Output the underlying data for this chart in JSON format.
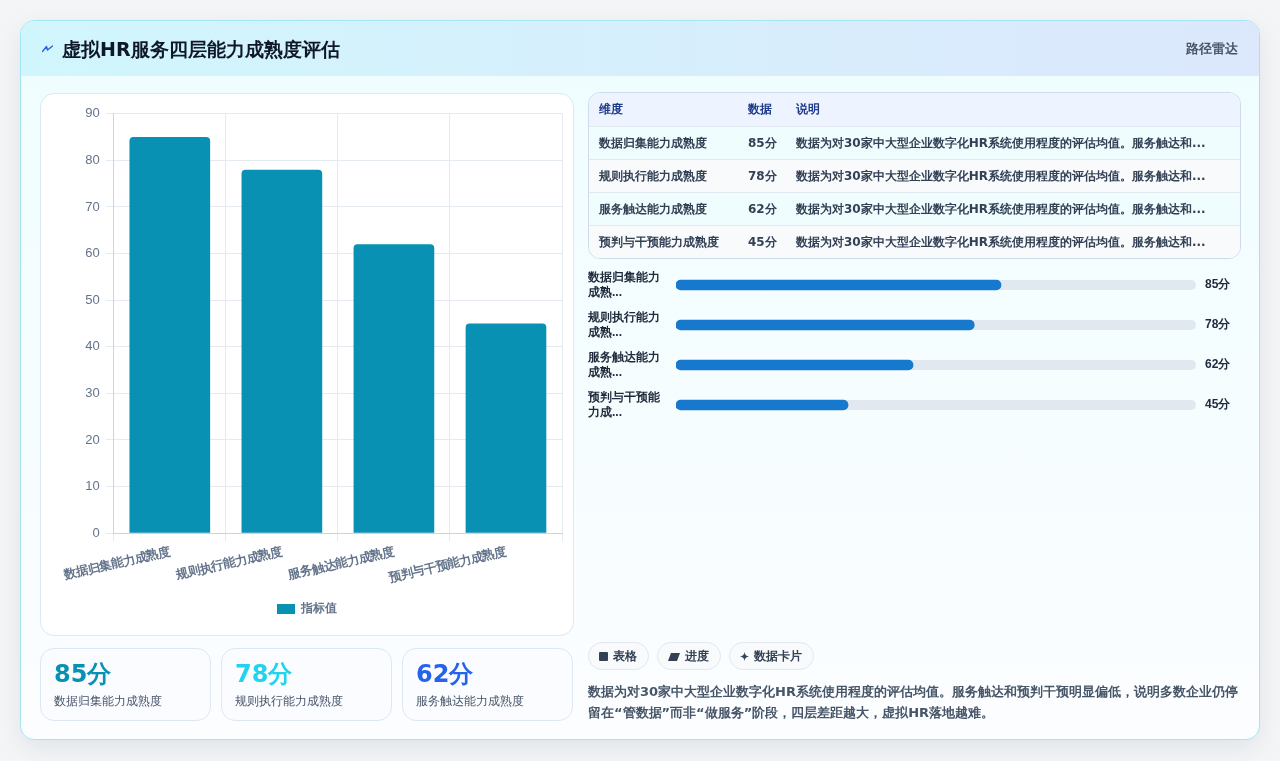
{
  "chart_data": [
    {
      "type": "bar",
      "title": "虚拟HR服务四层能力成熟度评估",
      "categories": [
        "数据归集能力成熟度",
        "规则执行能力成熟度",
        "服务触达能力成熟度",
        "预判与干预能力成熟度"
      ],
      "series": [
        {
          "name": "指标值",
          "color": "#0891b2",
          "values": [
            85,
            78,
            62,
            45
          ]
        }
      ],
      "ylim": [
        0,
        90
      ],
      "yticks": [
        0,
        10,
        20,
        30,
        40,
        50,
        60,
        70,
        80,
        90
      ],
      "grid": true,
      "legend": "bottom",
      "annotations": [
        "表格",
        "进度",
        "数据卡片",
        "数据为对30家中大型企业数字化HR系统使用程度的评估均值。服务触达和预判干预明显偏低，说明多数企业仍停留在“管数据”而非“做服务”阶段，四层差距越大，虚拟HR落地越难。"
      ]
    },
    {
      "type": "other",
      "title": "路径雷达",
      "categories": [
        "数据归集能力成熟度",
        "规则执行能力成熟度",
        "服务触达能力成熟度",
        "预判与干预能力成熟度"
      ],
      "value_labels": [
        "85分",
        "78分",
        "62分",
        "45分"
      ],
      "annotations": [
        "维度",
        "数据",
        "说明",
        "数据为对30家中大型企业数字化HR系统使用程度的评估均值。服务触达和...",
        "数据为对30家中大型企业数字化HR系统使用程度的评估均值。服务触达和...",
        "数据为对30家中大型企业数字化HR系统使用程度的评估均值。服务触达和...",
        "数据为对30家中大型企业数字化HR系统使用程度的评估均值。服务触达和..."
      ]
    },
    {
      "type": "bar",
      "orientation": "horizontal",
      "categories": [
        "数据归集能力成熟...",
        "规则执行能力成熟...",
        "服务触达能力成熟...",
        "预判与干预能力成..."
      ],
      "values": [
        85,
        78,
        62,
        45
      ],
      "value_labels": [
        "85分",
        "78分",
        "62分",
        "45分"
      ],
      "color": "#1779ce",
      "xlim": [
        0,
        136
      ],
      "tick_labels": "y"
    },
    {
      "type": "other",
      "categories": [
        "数据归集能力成熟度",
        "规则执行能力成熟度",
        "服务触达能力成熟度"
      ],
      "value_labels": [
        "85分",
        "78分",
        "62分"
      ]
    }
  ]
}
